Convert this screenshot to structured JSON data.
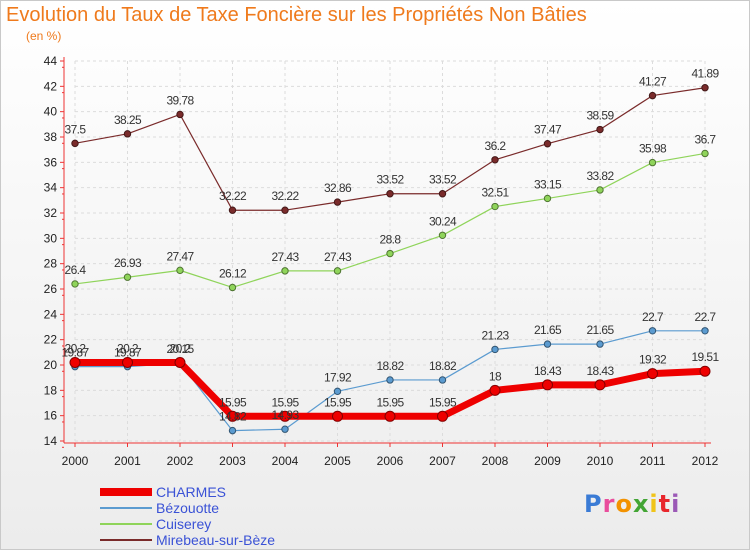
{
  "title": "Evolution du Taux de Taxe Foncière sur les Propriétés Non Bâties",
  "subtitle": "(en %)",
  "logo": {
    "text": "Proxiti",
    "colors": [
      "#3a7bd5",
      "#e94d9c",
      "#f39200",
      "#43a535",
      "#f0c419",
      "#e8262c",
      "#9b59b6"
    ]
  },
  "chart_data": {
    "type": "line",
    "x": [
      "2000",
      "2001",
      "2002",
      "2003",
      "2004",
      "2005",
      "2006",
      "2007",
      "2008",
      "2009",
      "2010",
      "2011",
      "2012"
    ],
    "ylim": [
      14,
      44
    ],
    "yticks": [
      "14",
      "16",
      "18",
      "20",
      "22",
      "24",
      "26",
      "28",
      "30",
      "32",
      "34",
      "36",
      "38",
      "40",
      "42",
      "44"
    ],
    "grid": true,
    "legend_position": "bottom-left",
    "series": [
      {
        "name": "Mirebeau-sur-Bèze",
        "color": "#7a2b2b",
        "width": 1.2,
        "values": [
          37.5,
          38.25,
          39.78,
          32.22,
          32.22,
          32.86,
          33.52,
          33.52,
          36.2,
          37.47,
          38.59,
          41.27,
          41.89
        ],
        "labels": [
          "37.5",
          "38.25",
          "39.78",
          "32.22",
          "32.22",
          "32.86",
          "33.52",
          "33.52",
          "36.2",
          "37.47",
          "38.59",
          "41.27",
          "41.89"
        ]
      },
      {
        "name": "Cuiserey",
        "color": "#8fd45a",
        "width": 1.2,
        "values": [
          26.4,
          26.93,
          27.47,
          26.12,
          27.43,
          27.43,
          28.8,
          30.24,
          32.51,
          33.15,
          33.82,
          35.98,
          36.7
        ],
        "labels": [
          "26.4",
          "26.93",
          "27.47",
          "26.12",
          "27.43",
          "27.43",
          "28.8",
          "30.24",
          "32.51",
          "33.15",
          "33.82",
          "35.98",
          "36.7"
        ]
      },
      {
        "name": "Bézouotte",
        "color": "#5b9bd0",
        "width": 1.2,
        "values": [
          19.87,
          19.87,
          20.15,
          14.82,
          14.93,
          17.92,
          18.82,
          18.82,
          21.23,
          21.65,
          21.65,
          22.7,
          22.7
        ],
        "labels": [
          "19.87",
          "19.87",
          "20.15",
          "14.82",
          "14.93",
          "17.92",
          "18.82",
          "18.82",
          "21.23",
          "21.65",
          "21.65",
          "22.7",
          "22.7"
        ]
      },
      {
        "name": "CHARMES",
        "color": "#ee0000",
        "width": 7,
        "values": [
          20.2,
          20.2,
          20.2,
          15.95,
          15.95,
          15.95,
          15.95,
          15.95,
          18.0,
          18.43,
          18.43,
          19.32,
          19.51
        ],
        "labels": [
          "20.2",
          "20.2",
          "20.2",
          "15.95",
          "15.95",
          "15.95",
          "15.95",
          "15.95",
          "18",
          "18.43",
          "18.43",
          "19.32",
          "19.51"
        ]
      }
    ]
  }
}
